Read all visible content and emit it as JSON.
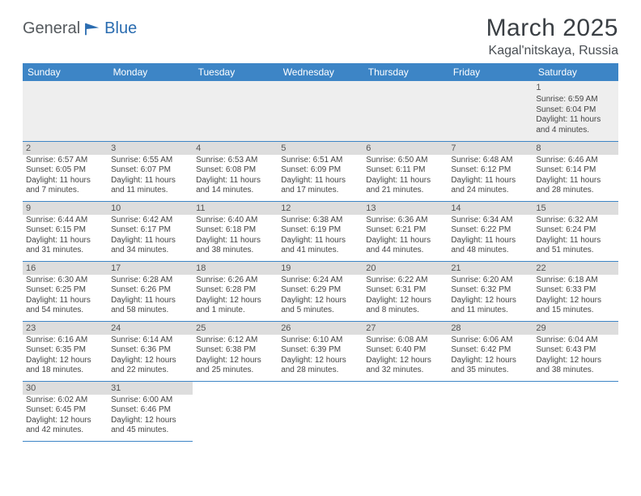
{
  "brand": {
    "part1": "General",
    "part2": "Blue"
  },
  "title": "March 2025",
  "location": "Kagal'nitskaya, Russia",
  "colors": {
    "header_bg": "#3d85c6",
    "header_fg": "#ffffff",
    "daynum_bg": "#dddddd",
    "border": "#3d85c6",
    "firstrow_bg": "#eeeeee",
    "logo_gray": "#555a5e",
    "logo_blue": "#2a6cb0"
  },
  "daysOfWeek": [
    "Sunday",
    "Monday",
    "Tuesday",
    "Wednesday",
    "Thursday",
    "Friday",
    "Saturday"
  ],
  "weeks": [
    [
      null,
      null,
      null,
      null,
      null,
      null,
      {
        "n": "1",
        "sr": "6:59 AM",
        "ss": "6:04 PM",
        "dl": "11 hours and 4 minutes."
      }
    ],
    [
      {
        "n": "2",
        "sr": "6:57 AM",
        "ss": "6:05 PM",
        "dl": "11 hours and 7 minutes."
      },
      {
        "n": "3",
        "sr": "6:55 AM",
        "ss": "6:07 PM",
        "dl": "11 hours and 11 minutes."
      },
      {
        "n": "4",
        "sr": "6:53 AM",
        "ss": "6:08 PM",
        "dl": "11 hours and 14 minutes."
      },
      {
        "n": "5",
        "sr": "6:51 AM",
        "ss": "6:09 PM",
        "dl": "11 hours and 17 minutes."
      },
      {
        "n": "6",
        "sr": "6:50 AM",
        "ss": "6:11 PM",
        "dl": "11 hours and 21 minutes."
      },
      {
        "n": "7",
        "sr": "6:48 AM",
        "ss": "6:12 PM",
        "dl": "11 hours and 24 minutes."
      },
      {
        "n": "8",
        "sr": "6:46 AM",
        "ss": "6:14 PM",
        "dl": "11 hours and 28 minutes."
      }
    ],
    [
      {
        "n": "9",
        "sr": "6:44 AM",
        "ss": "6:15 PM",
        "dl": "11 hours and 31 minutes."
      },
      {
        "n": "10",
        "sr": "6:42 AM",
        "ss": "6:17 PM",
        "dl": "11 hours and 34 minutes."
      },
      {
        "n": "11",
        "sr": "6:40 AM",
        "ss": "6:18 PM",
        "dl": "11 hours and 38 minutes."
      },
      {
        "n": "12",
        "sr": "6:38 AM",
        "ss": "6:19 PM",
        "dl": "11 hours and 41 minutes."
      },
      {
        "n": "13",
        "sr": "6:36 AM",
        "ss": "6:21 PM",
        "dl": "11 hours and 44 minutes."
      },
      {
        "n": "14",
        "sr": "6:34 AM",
        "ss": "6:22 PM",
        "dl": "11 hours and 48 minutes."
      },
      {
        "n": "15",
        "sr": "6:32 AM",
        "ss": "6:24 PM",
        "dl": "11 hours and 51 minutes."
      }
    ],
    [
      {
        "n": "16",
        "sr": "6:30 AM",
        "ss": "6:25 PM",
        "dl": "11 hours and 54 minutes."
      },
      {
        "n": "17",
        "sr": "6:28 AM",
        "ss": "6:26 PM",
        "dl": "11 hours and 58 minutes."
      },
      {
        "n": "18",
        "sr": "6:26 AM",
        "ss": "6:28 PM",
        "dl": "12 hours and 1 minute."
      },
      {
        "n": "19",
        "sr": "6:24 AM",
        "ss": "6:29 PM",
        "dl": "12 hours and 5 minutes."
      },
      {
        "n": "20",
        "sr": "6:22 AM",
        "ss": "6:31 PM",
        "dl": "12 hours and 8 minutes."
      },
      {
        "n": "21",
        "sr": "6:20 AM",
        "ss": "6:32 PM",
        "dl": "12 hours and 11 minutes."
      },
      {
        "n": "22",
        "sr": "6:18 AM",
        "ss": "6:33 PM",
        "dl": "12 hours and 15 minutes."
      }
    ],
    [
      {
        "n": "23",
        "sr": "6:16 AM",
        "ss": "6:35 PM",
        "dl": "12 hours and 18 minutes."
      },
      {
        "n": "24",
        "sr": "6:14 AM",
        "ss": "6:36 PM",
        "dl": "12 hours and 22 minutes."
      },
      {
        "n": "25",
        "sr": "6:12 AM",
        "ss": "6:38 PM",
        "dl": "12 hours and 25 minutes."
      },
      {
        "n": "26",
        "sr": "6:10 AM",
        "ss": "6:39 PM",
        "dl": "12 hours and 28 minutes."
      },
      {
        "n": "27",
        "sr": "6:08 AM",
        "ss": "6:40 PM",
        "dl": "12 hours and 32 minutes."
      },
      {
        "n": "28",
        "sr": "6:06 AM",
        "ss": "6:42 PM",
        "dl": "12 hours and 35 minutes."
      },
      {
        "n": "29",
        "sr": "6:04 AM",
        "ss": "6:43 PM",
        "dl": "12 hours and 38 minutes."
      }
    ],
    [
      {
        "n": "30",
        "sr": "6:02 AM",
        "ss": "6:45 PM",
        "dl": "12 hours and 42 minutes."
      },
      {
        "n": "31",
        "sr": "6:00 AM",
        "ss": "6:46 PM",
        "dl": "12 hours and 45 minutes."
      },
      null,
      null,
      null,
      null,
      null
    ]
  ],
  "labels": {
    "sunrise": "Sunrise:",
    "sunset": "Sunset:",
    "daylight": "Daylight:"
  }
}
